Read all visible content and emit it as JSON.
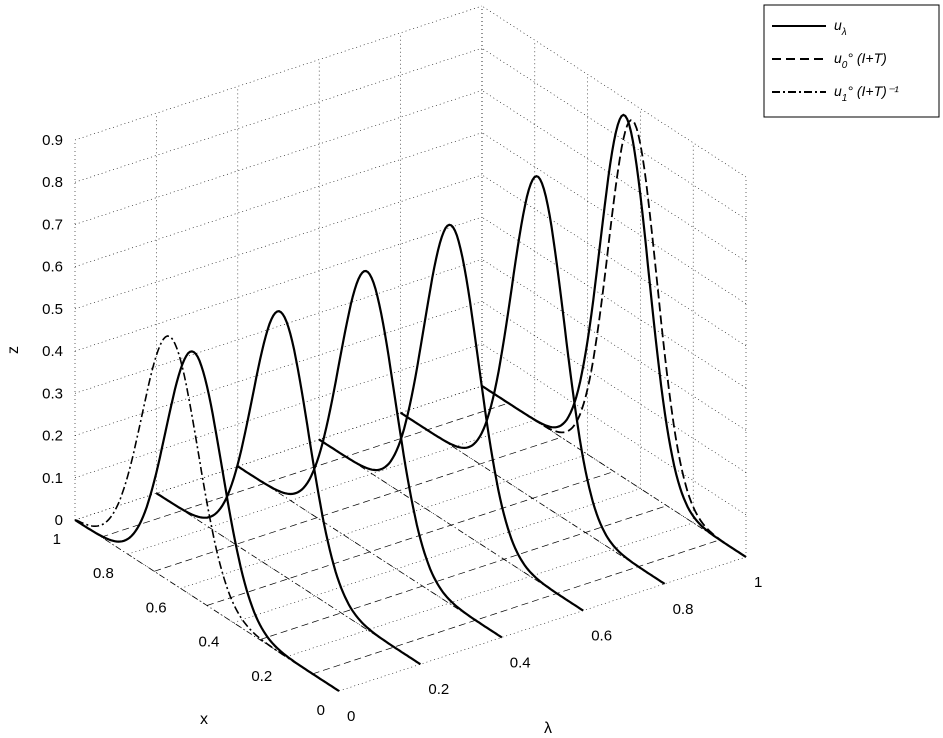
{
  "chart_data": {
    "type": "line",
    "title": "",
    "axes": {
      "x": {
        "label": "x",
        "range": [
          0,
          1
        ],
        "ticks": [
          "0",
          "0.2",
          "0.4",
          "0.6",
          "0.8",
          "1"
        ]
      },
      "lambda": {
        "label": "λ",
        "range": [
          0,
          1
        ],
        "ticks": [
          "0",
          "0.2",
          "0.4",
          "0.6",
          "0.8",
          "1"
        ]
      },
      "z": {
        "label": "z",
        "range": [
          0,
          0.9
        ],
        "ticks": [
          "0",
          "0.1",
          "0.2",
          "0.3",
          "0.4",
          "0.5",
          "0.6",
          "0.7",
          "0.8",
          "0.9"
        ]
      }
    },
    "grid": true,
    "legend_position": "top-right",
    "legend": [
      {
        "style": "solid",
        "text": "u",
        "sub": "λ",
        "rest": ""
      },
      {
        "style": "dashed",
        "text": "u",
        "sub": "0",
        "rest": "° (I+T)"
      },
      {
        "style": "dashdot",
        "text": "u",
        "sub": "1",
        "rest": "° (I+T)⁻¹"
      }
    ],
    "slices": [
      {
        "lambda": 0.0,
        "peak_x": 0.55,
        "peak_z": 0.58,
        "width": 0.15
      },
      {
        "lambda": 0.2,
        "peak_x": 0.53,
        "peak_z": 0.62,
        "width": 0.15
      },
      {
        "lambda": 0.4,
        "peak_x": 0.51,
        "peak_z": 0.66,
        "width": 0.15
      },
      {
        "lambda": 0.6,
        "peak_x": 0.5,
        "peak_z": 0.71,
        "width": 0.145
      },
      {
        "lambda": 0.8,
        "peak_x": 0.48,
        "peak_z": 0.77,
        "width": 0.14
      },
      {
        "lambda": 1.0,
        "peak_x": 0.46,
        "peak_z": 0.86,
        "width": 0.13
      }
    ]
  }
}
